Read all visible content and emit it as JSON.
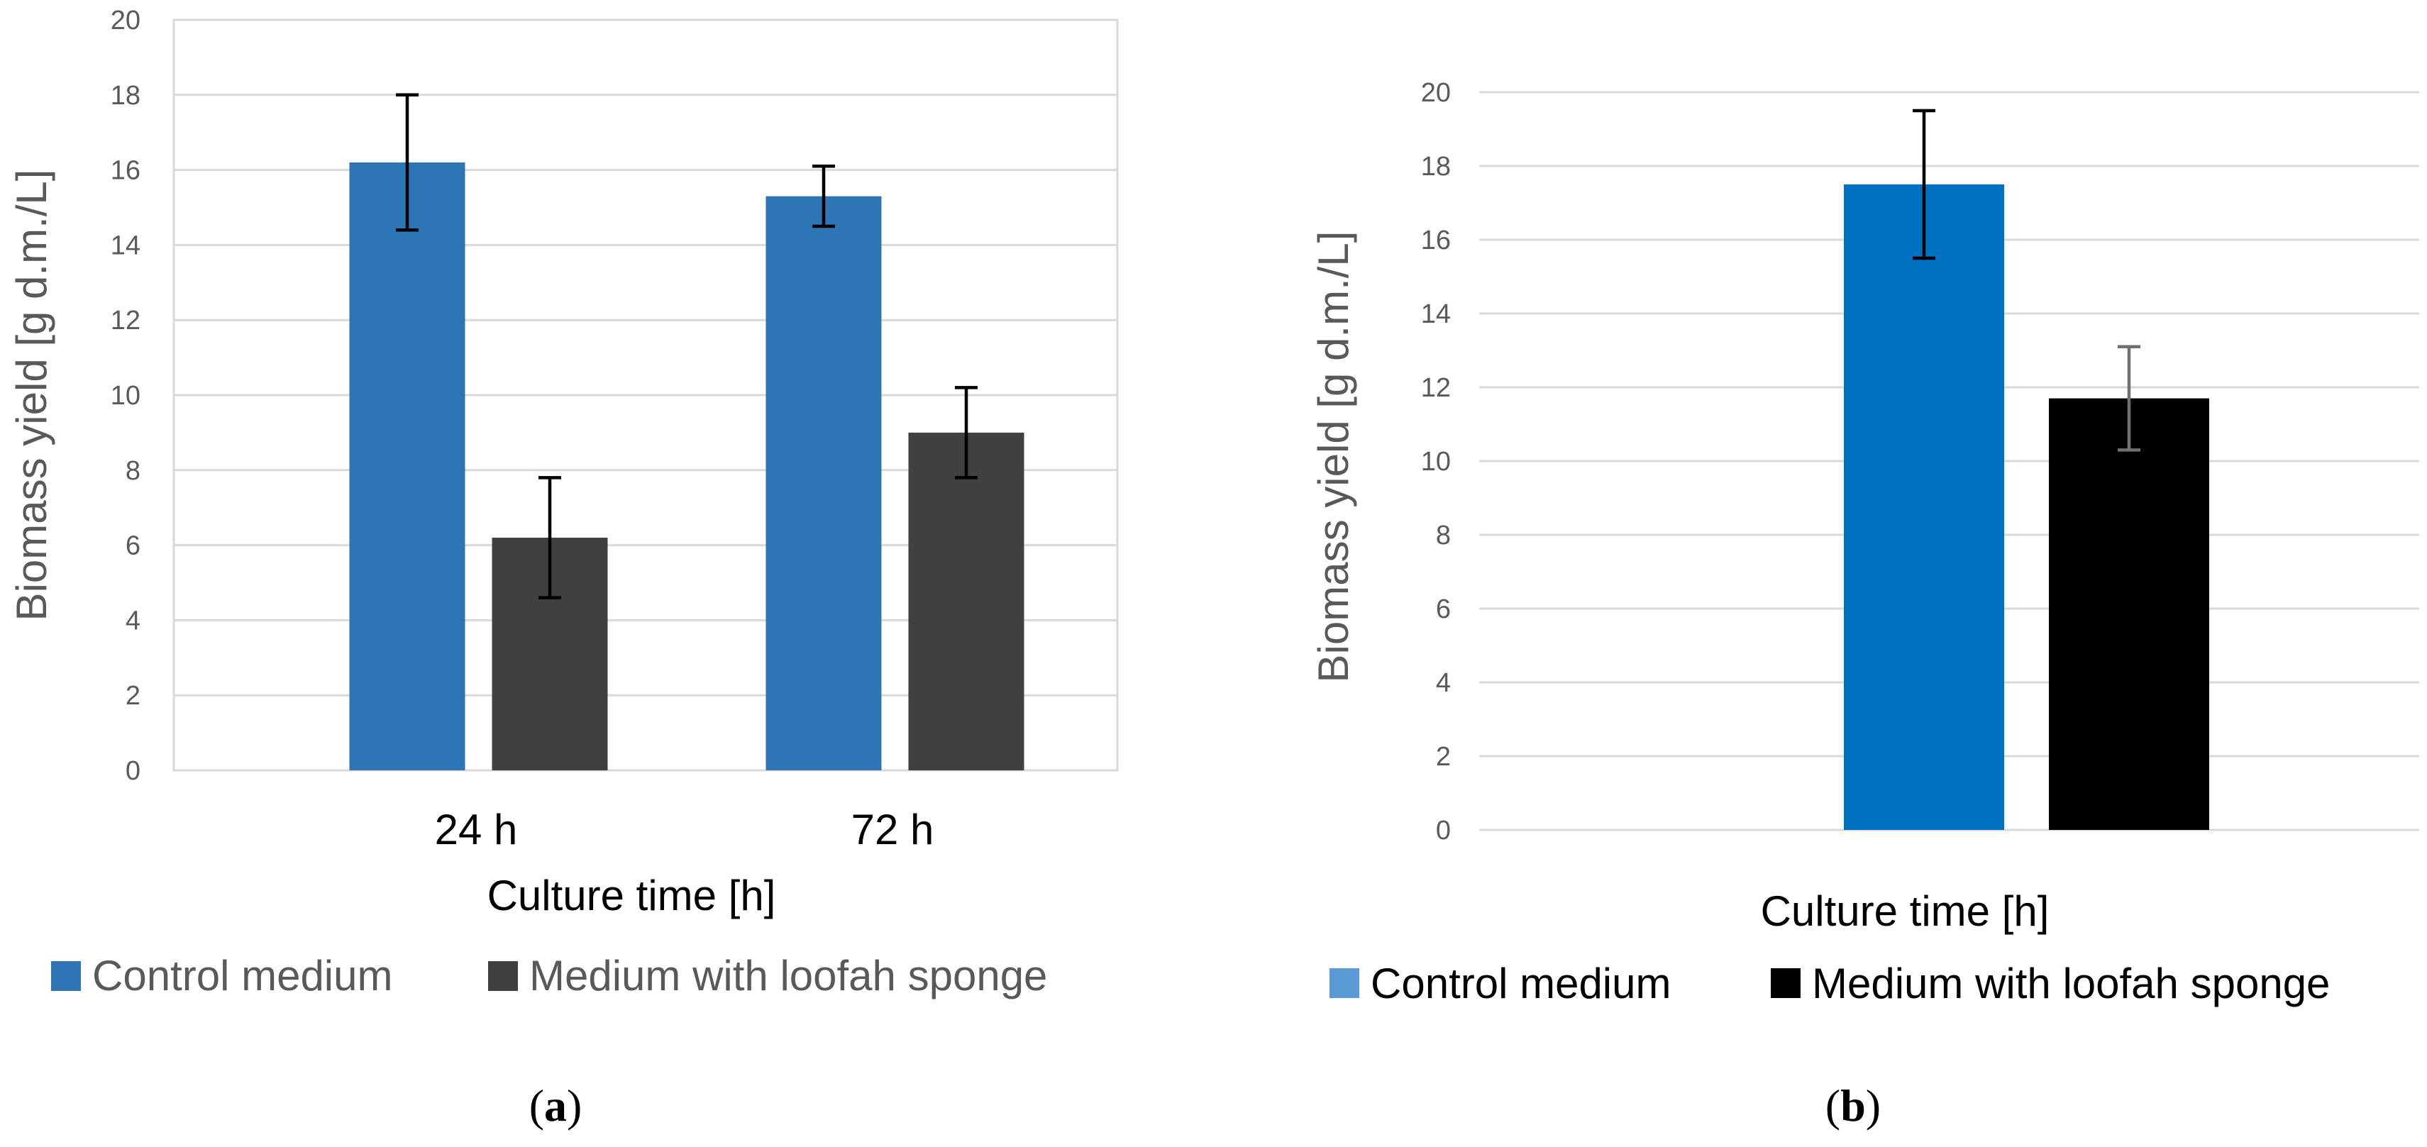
{
  "chart_data": [
    {
      "panel": "a",
      "type": "bar",
      "categories": [
        "24 h",
        "72 h"
      ],
      "series": [
        {
          "name": "Control medium",
          "color": "#2E75B6",
          "values": [
            16.2,
            15.3
          ],
          "errors": [
            1.8,
            0.8
          ],
          "error_color": "#000000"
        },
        {
          "name": "Medium with loofah sponge",
          "color": "#404040",
          "values": [
            6.2,
            9.0
          ],
          "errors": [
            1.6,
            1.2
          ],
          "error_color": "#000000"
        }
      ],
      "ylabel": "Biomass yield [g d.m./L]",
      "xlabel": "Culture time [h]",
      "ylim": [
        0,
        20
      ],
      "yticks": [
        "0",
        "2",
        "4",
        "6",
        "8",
        "10",
        "12",
        "14",
        "16",
        "18",
        "20"
      ],
      "grid": true,
      "legend": "bottom",
      "panel_label": "a"
    },
    {
      "panel": "b",
      "type": "bar",
      "categories": [
        ""
      ],
      "series": [
        {
          "name": "Control medium",
          "color": "#0070C0",
          "legend_color": "#5B9BD5",
          "values": [
            17.5
          ],
          "errors": [
            2.0
          ],
          "error_color": "#000000"
        },
        {
          "name": "Medium with loofah sponge",
          "color": "#000000",
          "values": [
            11.7
          ],
          "errors": [
            1.4
          ],
          "error_color": "#707070"
        }
      ],
      "ylabel": "Biomass yield [g d.m./L]",
      "xlabel": "Culture time [h]",
      "ylim": [
        0,
        20
      ],
      "yticks": [
        "0",
        "2",
        "4",
        "6",
        "8",
        "10",
        "12",
        "14",
        "16",
        "18",
        "20"
      ],
      "grid": true,
      "legend": "bottom",
      "panel_label": "b"
    }
  ]
}
